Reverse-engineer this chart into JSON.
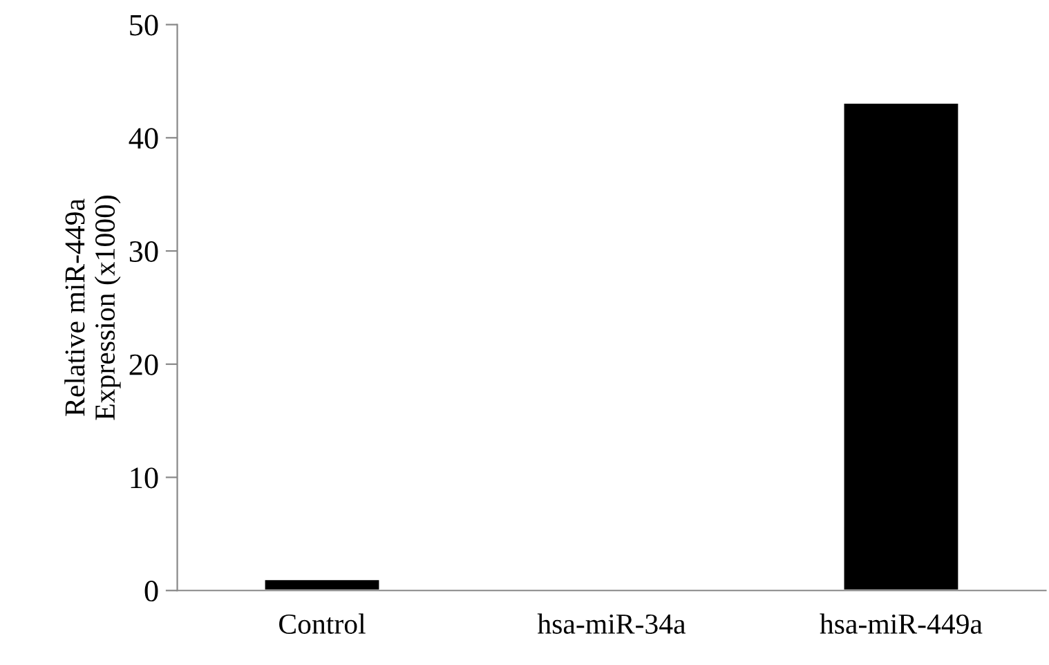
{
  "chart_data": {
    "type": "bar",
    "ylabel": "Relative miR-449a\nExpression (x1000)",
    "categories": [
      "Control",
      "hsa-miR-34a",
      "hsa-miR-449a"
    ],
    "values": [
      1.0,
      null,
      43.1
    ],
    "color": "#000000",
    "ylim": [
      0,
      50
    ],
    "yticks": [
      0,
      10,
      20,
      30,
      40,
      50
    ],
    "grid": false,
    "legend": false
  }
}
